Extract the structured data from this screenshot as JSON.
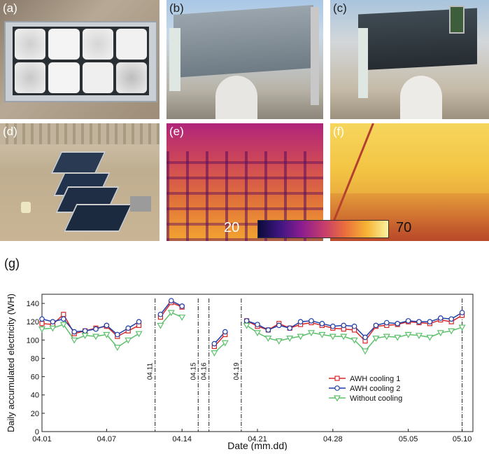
{
  "panels": {
    "a": "(a)",
    "b": "(b)",
    "c": "(c)",
    "d": "(d)",
    "e": "(e)",
    "f": "(f)",
    "g": "(g)"
  },
  "colorbar": {
    "min": "20",
    "max": "70"
  },
  "chart_data": {
    "type": "line",
    "xlabel": "Date (mm.dd)",
    "ylabel": "Daily accumulated electricity (WH)",
    "ylim": [
      0,
      150
    ],
    "xlim": [
      0,
      40
    ],
    "yticks": [
      0,
      20,
      40,
      60,
      80,
      100,
      120,
      140
    ],
    "xticks": [
      {
        "x": 0,
        "label": "04.01"
      },
      {
        "x": 6,
        "label": "04.07"
      },
      {
        "x": 13,
        "label": "04.14"
      },
      {
        "x": 20,
        "label": "04.21"
      },
      {
        "x": 27,
        "label": "04.28"
      },
      {
        "x": 34,
        "label": "05.05"
      },
      {
        "x": 39,
        "label": "05.10"
      }
    ],
    "vlines": [
      {
        "x": 0,
        "label": ""
      },
      {
        "x": 10.5,
        "label": "04.11"
      },
      {
        "x": 14.5,
        "label": "04.15"
      },
      {
        "x": 15.5,
        "label": "04.16"
      },
      {
        "x": 18.5,
        "label": "04.19"
      },
      {
        "x": 39,
        "label": ""
      }
    ],
    "legend_position": "bottom-right",
    "series": [
      {
        "name": "AWH cooling 1",
        "color": "#d62728",
        "marker": "square",
        "segments": [
          {
            "x": [
              0,
              1,
              2,
              3,
              4,
              5,
              6,
              7,
              8,
              9
            ],
            "y": [
              118,
              117,
              128,
              107,
              110,
              113,
              115,
              104,
              110,
              116
            ]
          },
          {
            "x": [
              11,
              12,
              13
            ],
            "y": [
              125,
              141,
              136
            ]
          },
          {
            "x": [
              16,
              17
            ],
            "y": [
              93,
              106
            ]
          },
          {
            "x": [
              19,
              20,
              21,
              22,
              23,
              24,
              25,
              26,
              27,
              28,
              29,
              30,
              31,
              32,
              33,
              34,
              35,
              36,
              37,
              38,
              39
            ],
            "y": [
              121,
              115,
              111,
              118,
              113,
              117,
              119,
              116,
              113,
              112,
              111,
              99,
              115,
              116,
              117,
              120,
              119,
              118,
              122,
              120,
              127
            ]
          }
        ]
      },
      {
        "name": "AWH cooling 2",
        "color": "#1f3fa8",
        "marker": "circle",
        "segments": [
          {
            "x": [
              0,
              1,
              2,
              3,
              4,
              5,
              6,
              7,
              8,
              9
            ],
            "y": [
              123,
              120,
              123,
              109,
              110,
              112,
              116,
              106,
              113,
              120
            ]
          },
          {
            "x": [
              11,
              12,
              13
            ],
            "y": [
              128,
              143,
              137
            ]
          },
          {
            "x": [
              16,
              17
            ],
            "y": [
              96,
              109
            ]
          },
          {
            "x": [
              19,
              20,
              21,
              22,
              23,
              24,
              25,
              26,
              27,
              28,
              29,
              30,
              31,
              32,
              33,
              34,
              35,
              36,
              37,
              38,
              39
            ],
            "y": [
              121,
              117,
              111,
              116,
              113,
              120,
              121,
              118,
              115,
              116,
              115,
              103,
              116,
              119,
              118,
              121,
              120,
              120,
              124,
              123,
              130
            ]
          }
        ]
      },
      {
        "name": "Without cooling",
        "color": "#5cc16a",
        "marker": "triangle-down",
        "segments": [
          {
            "x": [
              0,
              1,
              2,
              3,
              4,
              5,
              6,
              7,
              8,
              9
            ],
            "y": [
              112,
              113,
              117,
              100,
              105,
              104,
              106,
              92,
              100,
              107
            ]
          },
          {
            "x": [
              11,
              12,
              13
            ],
            "y": [
              116,
              130,
              125
            ]
          },
          {
            "x": [
              16,
              17
            ],
            "y": [
              86,
              97
            ]
          },
          {
            "x": [
              19,
              20,
              21,
              22,
              23,
              24,
              25,
              26,
              27,
              28,
              29,
              30,
              31,
              32,
              33,
              34,
              35,
              36,
              37,
              38,
              39
            ],
            "y": [
              116,
              108,
              102,
              99,
              102,
              104,
              108,
              106,
              104,
              104,
              100,
              88,
              102,
              104,
              103,
              106,
              105,
              103,
              108,
              110,
              114
            ]
          }
        ]
      }
    ]
  }
}
